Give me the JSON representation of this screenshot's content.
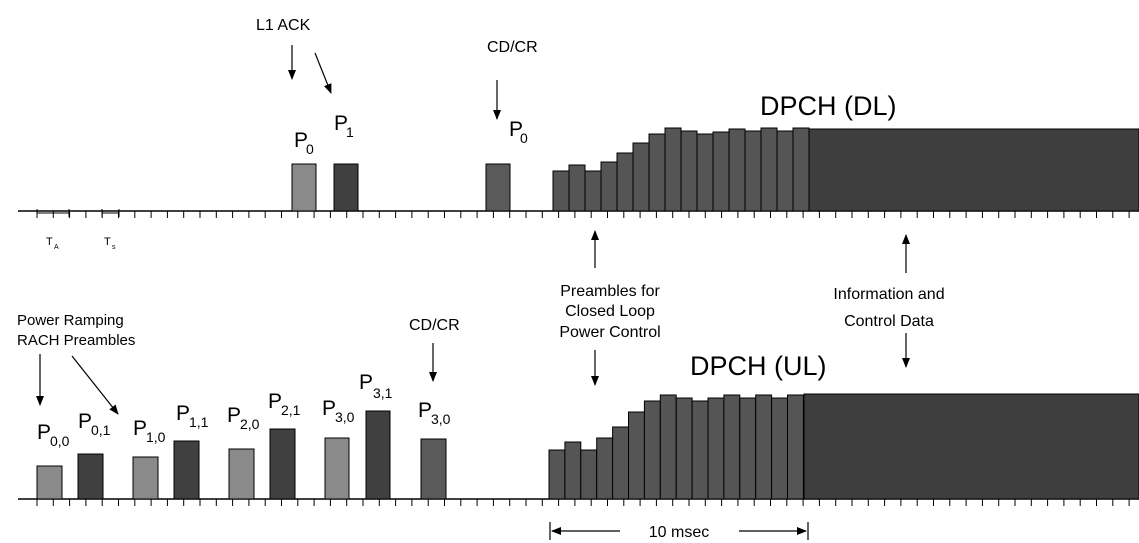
{
  "colors": {
    "light_bar": "#8a8a8a",
    "dark_bar": "#404040",
    "mid_bar": "#5a5a5a",
    "dpch_fill": "#3e3e3e",
    "axis": "#000000"
  },
  "downlink": {
    "labels": {
      "l1_ack": "L1 ACK",
      "cdcr": "CD/CR",
      "dpch": "DPCH (DL)",
      "ta": "T",
      "ta_sub": "A",
      "ts": "T",
      "ts_sub": "s"
    },
    "preambles": [
      {
        "main": "P",
        "sub": "0"
      },
      {
        "main": "P",
        "sub": "1"
      },
      {
        "main": "P",
        "sub": "0"
      }
    ]
  },
  "uplink": {
    "labels": {
      "power_ramping_line1": "Power Ramping",
      "power_ramping_line2": "RACH Preambles",
      "cdcr": "CD/CR",
      "dpch": "DPCH (UL)"
    },
    "preambles": [
      {
        "main": "P",
        "sub": "0,0"
      },
      {
        "main": "P",
        "sub": "0,1"
      },
      {
        "main": "P",
        "sub": "1,0"
      },
      {
        "main": "P",
        "sub": "1,1"
      },
      {
        "main": "P",
        "sub": "2,0"
      },
      {
        "main": "P",
        "sub": "2,1"
      },
      {
        "main": "P",
        "sub": "3,0"
      },
      {
        "main": "P",
        "sub": "3,1"
      },
      {
        "main": "P",
        "sub": "3,0"
      }
    ]
  },
  "annotations": {
    "preambles_line1": "Preambles for",
    "preambles_line2": "Closed Loop",
    "preambles_line3": "Power Control",
    "info_line1": "Information and",
    "info_line2": "Control Data",
    "duration": "10 msec"
  }
}
